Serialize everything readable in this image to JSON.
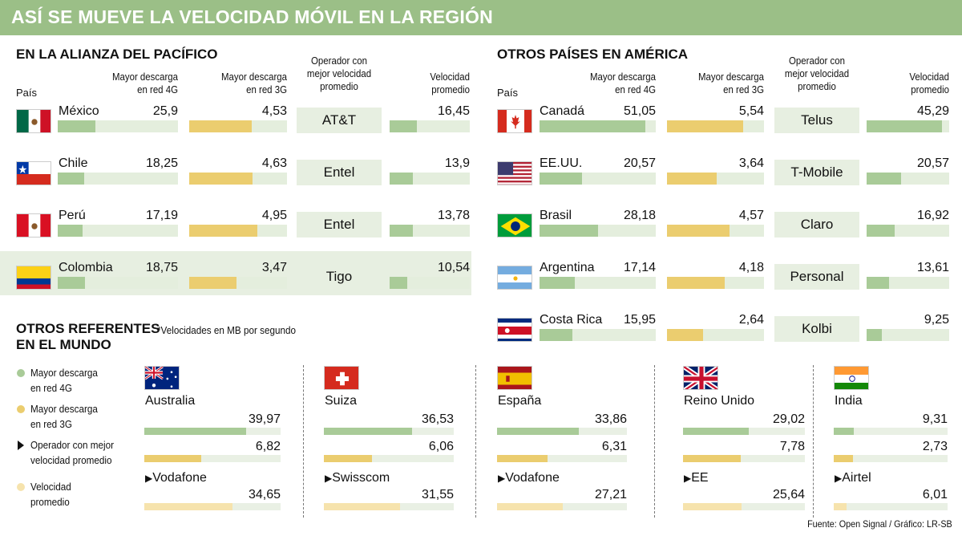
{
  "title": "ASÍ SE MUEVE LA VELOCIDAD MÓVIL EN LA REGIÓN",
  "headers": {
    "pais": "País",
    "descarga_4g": [
      "Mayor descarga",
      "en red 4G"
    ],
    "descarga_3g": [
      "Mayor descarga",
      "en red 3G"
    ],
    "operador": [
      "Operador con",
      "mejor velocidad",
      "promedio"
    ],
    "velocidad": [
      "Velocidad",
      "promedio"
    ]
  },
  "colors": {
    "title_bg": "#9bbf87",
    "bar_4g": "#a9cb98",
    "bar_3g": "#ebcd6f",
    "bar_velocidad_global": "#f6e3ad",
    "track": "#e4eedd"
  },
  "chart_data": [
    {
      "type": "table",
      "title": "EN LA ALIANZA DEL PACÍFICO",
      "columns": [
        "País",
        "Mayor descarga en red 4G",
        "Mayor descarga en red 3G",
        "Operador con mejor velocidad promedio",
        "Velocidad promedio"
      ],
      "scale_max": 55,
      "rows": [
        {
          "country": "México",
          "flag": "mexico-flag",
          "d4g": "25,9",
          "v4g": 25.9,
          "d3g": "4,53",
          "v3g": 4.53,
          "operator": "AT&T",
          "avg": "16,45",
          "vavg": 16.45
        },
        {
          "country": "Chile",
          "flag": "chile-flag",
          "d4g": "18,25",
          "v4g": 18.25,
          "d3g": "4,63",
          "v3g": 4.63,
          "operator": "Entel",
          "avg": "13,9",
          "vavg": 13.9
        },
        {
          "country": "Perú",
          "flag": "peru-flag",
          "d4g": "17,19",
          "v4g": 17.19,
          "d3g": "4,95",
          "v3g": 4.95,
          "operator": "Entel",
          "avg": "13,78",
          "vavg": 13.78
        },
        {
          "country": "Colombia",
          "flag": "colombia-flag",
          "d4g": "18,75",
          "v4g": 18.75,
          "d3g": "3,47",
          "v3g": 3.47,
          "operator": "Tigo",
          "avg": "10,54",
          "vavg": 10.54
        }
      ]
    },
    {
      "type": "table",
      "title": "OTROS PAÍSES EN AMÉRICA",
      "columns": [
        "País",
        "Mayor descarga en red 4G",
        "Mayor descarga en red 3G",
        "Operador con mejor velocidad promedio",
        "Velocidad promedio"
      ],
      "scale_max": 55,
      "rows": [
        {
          "country": "Canadá",
          "flag": "canada-flag",
          "d4g": "51,05",
          "v4g": 51.05,
          "d3g": "5,54",
          "v3g": 5.54,
          "operator": "Telus",
          "avg": "45,29",
          "vavg": 45.29
        },
        {
          "country": "EE.UU.",
          "flag": "usa-flag",
          "d4g": "20,57",
          "v4g": 20.57,
          "d3g": "3,64",
          "v3g": 3.64,
          "operator": "T-Mobile",
          "avg": "20,57",
          "vavg": 20.57
        },
        {
          "country": "Brasil",
          "flag": "brazil-flag",
          "d4g": "28,18",
          "v4g": 28.18,
          "d3g": "4,57",
          "v3g": 4.57,
          "operator": "Claro",
          "avg": "16,92",
          "vavg": 16.92
        },
        {
          "country": "Argentina",
          "flag": "argentina-flag",
          "d4g": "17,14",
          "v4g": 17.14,
          "d3g": "4,18",
          "v3g": 4.18,
          "operator": "Personal",
          "avg": "13,61",
          "vavg": 13.61
        },
        {
          "country": "Costa Rica",
          "flag": "costa-rica-flag",
          "d4g": "15,95",
          "v4g": 15.95,
          "d3g": "2,64",
          "v3g": 2.64,
          "operator": "Kolbi",
          "avg": "9,25",
          "vavg": 9.25
        }
      ]
    },
    {
      "type": "bar",
      "title": "OTROS REFERENTES EN EL MUNDO",
      "note": "*Velocidades en MB por segundo",
      "scale_max": 60,
      "legend": [
        {
          "label": [
            "Mayor descarga",
            "en red 4G"
          ],
          "symbol": "dot",
          "color": "#a9cb98"
        },
        {
          "label": [
            "Mayor descarga",
            "en red 3G"
          ],
          "symbol": "dot",
          "color": "#ebcd6f"
        },
        {
          "label": [
            "Operador con mejor",
            "velocidad promedio"
          ],
          "symbol": "triangle",
          "color": "#111111"
        },
        {
          "label": [
            "Velocidad",
            "promedio"
          ],
          "symbol": "dot",
          "color": "#f6e3ad"
        }
      ],
      "countries": [
        {
          "country": "Australia",
          "flag": "australia-flag",
          "d4g": "39,97",
          "v4g": 39.97,
          "d3g": "6,82",
          "v3g": 6.82,
          "operator": "Vodafone",
          "avg": "34,65",
          "vavg": 34.65
        },
        {
          "country": "Suiza",
          "flag": "switzerland-flag",
          "d4g": "36,53",
          "v4g": 36.53,
          "d3g": "6,06",
          "v3g": 6.06,
          "operator": "Swisscom",
          "avg": "31,55",
          "vavg": 31.55
        },
        {
          "country": "España",
          "flag": "spain-flag",
          "d4g": "33,86",
          "v4g": 33.86,
          "d3g": "6,31",
          "v3g": 6.31,
          "operator": "Vodafone",
          "avg": "27,21",
          "vavg": 27.21
        },
        {
          "country": "Reino Unido",
          "flag": "uk-flag",
          "d4g": "29,02",
          "v4g": 29.02,
          "d3g": "7,78",
          "v3g": 7.78,
          "operator": "EE",
          "avg": "25,64",
          "vavg": 25.64
        },
        {
          "country": "India",
          "flag": "india-flag",
          "d4g": "9,31",
          "v4g": 9.31,
          "d3g": "2,73",
          "v3g": 2.73,
          "operator": "Airtel",
          "avg": "6,01",
          "vavg": 6.01
        }
      ]
    }
  ],
  "source": "Fuente:  Open Signal  / Gráfico: LR-SB"
}
